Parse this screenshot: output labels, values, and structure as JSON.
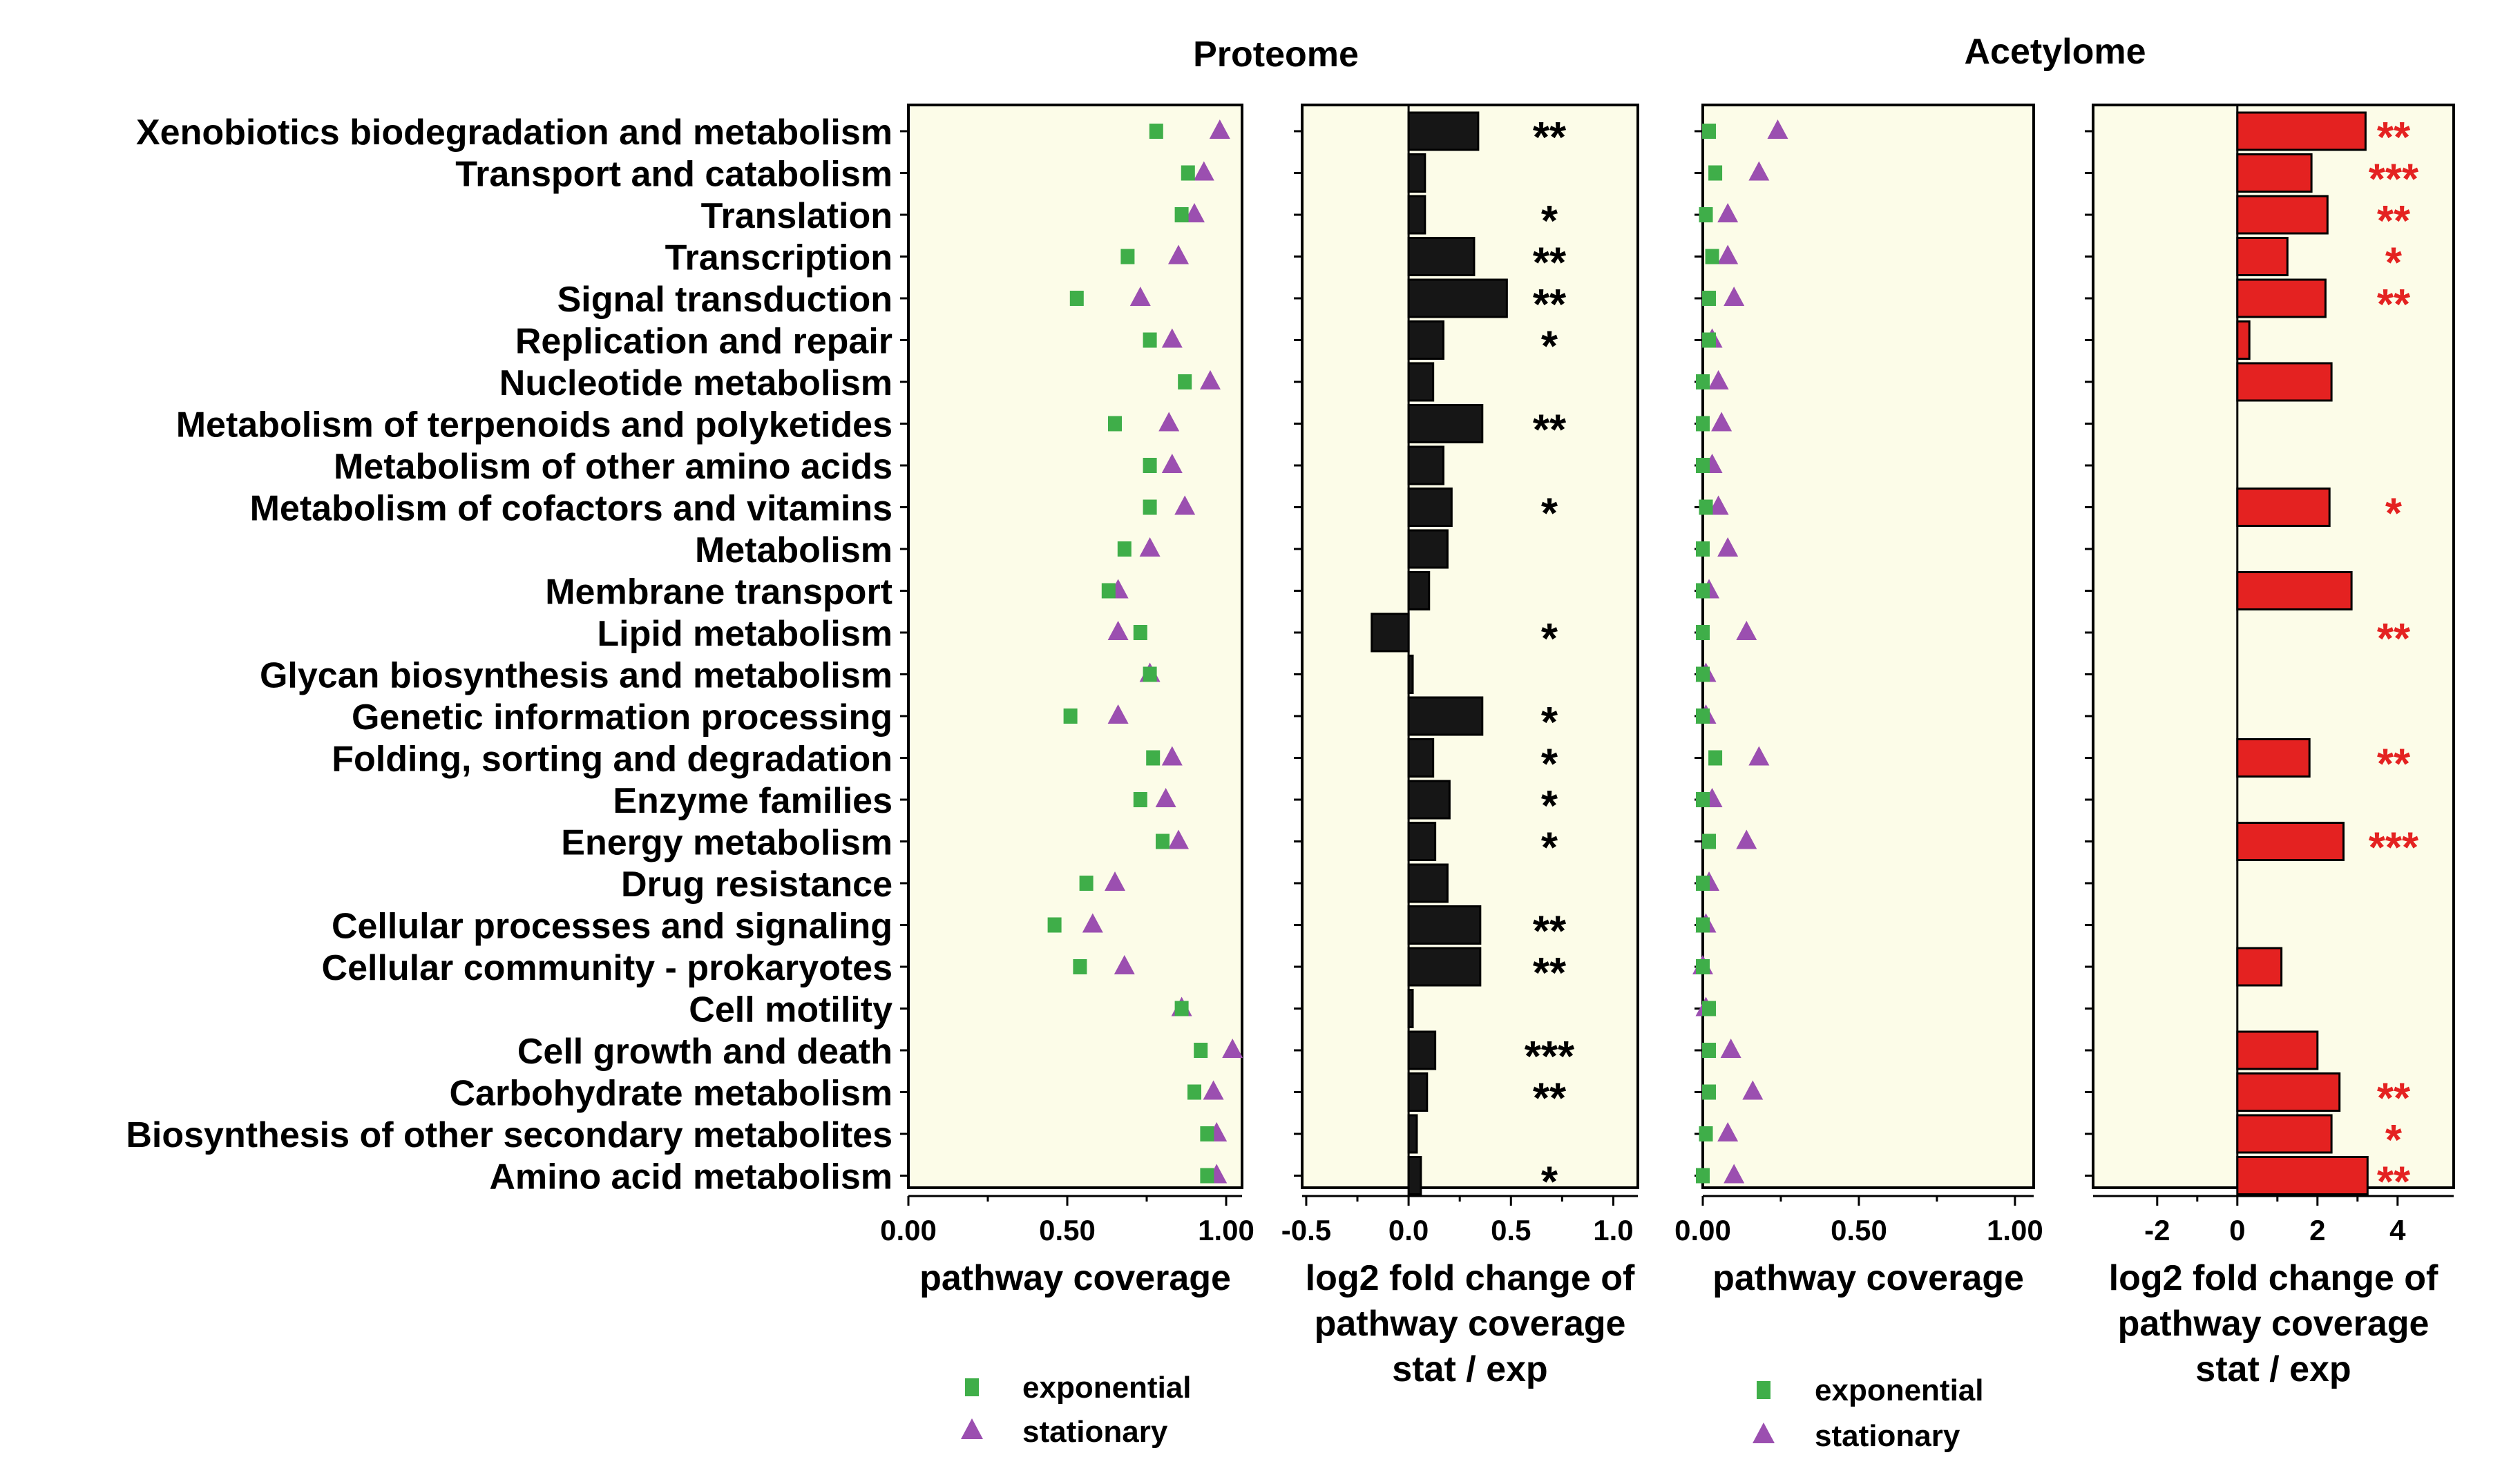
{
  "figure": {
    "section_titles": [
      "Proteome",
      "Acetylome"
    ],
    "pathways": [
      "Xenobiotics biodegradation and metabolism",
      "Transport and catabolism",
      "Translation",
      "Transcription",
      "Signal transduction",
      "Replication and repair",
      "Nucleotide metabolism",
      "Metabolism of terpenoids and polyketides",
      "Metabolism of other amino acids",
      "Metabolism of cofactors and vitamins",
      "Metabolism",
      "Membrane transport",
      "Lipid metabolism",
      "Glycan biosynthesis and metabolism",
      "Genetic information processing",
      "Folding, sorting and degradation",
      "Enzyme families",
      "Energy metabolism",
      "Drug resistance",
      "Cellular processes and signaling",
      "Cellular community - prokaryotes",
      "Cell motility",
      "Cell growth and death",
      "Carbohydrate metabolism",
      "Biosynthesis of other secondary metabolites",
      "Amino acid metabolism"
    ],
    "legend": [
      {
        "label": "exponential",
        "color": "#3fae49",
        "marker": "square"
      },
      {
        "label": "stationary",
        "color": "#9b4fb0",
        "marker": "triangle"
      }
    ],
    "colors": {
      "panel_bg": "#fcfce8",
      "exponential": "#3fae49",
      "stationary": "#9b4fb0",
      "proteome_bar": "#161616",
      "acetylome_bar": "#e42221",
      "acetylome_sig": "#e42221"
    }
  },
  "chart_data": [
    {
      "id": "proteome-coverage",
      "type": "scatter",
      "xlabel": "pathway coverage",
      "xlim": [
        0,
        1.05
      ],
      "xticks": [
        0,
        0.5,
        1
      ],
      "xtick_labels": [
        "0.00",
        "0.50",
        "1.00"
      ],
      "series": [
        {
          "name": "exponential",
          "values": [
            0.78,
            0.88,
            0.86,
            0.69,
            0.53,
            0.76,
            0.87,
            0.65,
            0.76,
            0.76,
            0.68,
            0.63,
            0.73,
            0.76,
            0.51,
            0.77,
            0.73,
            0.8,
            0.56,
            0.46,
            0.54,
            0.86,
            0.92,
            0.9,
            0.94,
            0.94
          ]
        },
        {
          "name": "stationary",
          "values": [
            0.98,
            0.93,
            0.9,
            0.85,
            0.73,
            0.83,
            0.95,
            0.82,
            0.83,
            0.87,
            0.76,
            0.66,
            0.66,
            0.76,
            0.66,
            0.83,
            0.81,
            0.85,
            0.65,
            0.58,
            0.68,
            0.86,
            1.02,
            0.96,
            0.97,
            0.97
          ]
        }
      ]
    },
    {
      "id": "proteome-fold-change",
      "type": "bar",
      "orientation": "horizontal",
      "xlabel": "log2 fold change of\npathway coverage\nstat / exp",
      "xlim": [
        -0.52,
        1.12
      ],
      "xticks": [
        -0.5,
        0,
        0.5,
        1
      ],
      "xtick_labels": [
        "-0.5",
        "0.0",
        "0.5",
        "1.0"
      ],
      "values": [
        0.34,
        0.08,
        0.08,
        0.32,
        0.48,
        0.17,
        0.12,
        0.36,
        0.17,
        0.21,
        0.19,
        0.1,
        -0.18,
        0.02,
        0.36,
        0.12,
        0.2,
        0.13,
        0.19,
        0.35,
        0.35,
        0.02,
        0.13,
        0.09,
        0.04,
        0.06
      ],
      "significance": [
        "**",
        "",
        "*",
        "**",
        "**",
        "*",
        "",
        "**",
        "",
        "*",
        "",
        "",
        "*",
        "",
        "*",
        "*",
        "*",
        "*",
        "",
        "**",
        "**",
        "",
        "***",
        "**",
        "",
        "*"
      ]
    },
    {
      "id": "acetylome-coverage",
      "type": "scatter",
      "xlabel": "pathway coverage",
      "xlim": [
        0,
        1.06
      ],
      "xticks": [
        0,
        0.5,
        1
      ],
      "xtick_labels": [
        "0.00",
        "0.50",
        "1.00"
      ],
      "series": [
        {
          "name": "exponential",
          "values": [
            0.02,
            0.04,
            0.01,
            0.03,
            0.02,
            0.02,
            0.0,
            0.0,
            0.0,
            0.01,
            0.0,
            0.0,
            0.0,
            0.0,
            0.0,
            0.04,
            0.0,
            0.02,
            0.0,
            0.0,
            0.0,
            0.02,
            0.02,
            0.02,
            0.01,
            0.0
          ]
        },
        {
          "name": "stationary",
          "values": [
            0.24,
            0.18,
            0.08,
            0.08,
            0.1,
            0.03,
            0.05,
            0.06,
            0.03,
            0.05,
            0.08,
            0.02,
            0.14,
            0.01,
            0.01,
            0.18,
            0.03,
            0.14,
            0.02,
            0.01,
            0.0,
            0.01,
            0.09,
            0.16,
            0.08,
            0.1
          ]
        }
      ]
    },
    {
      "id": "acetylome-fold-change",
      "type": "bar",
      "orientation": "horizontal",
      "xlabel": "log2 fold change of\npathway coverage\nstat / exp",
      "xlim": [
        -3.6,
        5.4
      ],
      "xticks": [
        -2,
        0,
        2,
        4
      ],
      "xtick_labels": [
        "-2",
        "0",
        "2",
        "4"
      ],
      "values": [
        3.2,
        1.85,
        2.25,
        1.25,
        2.2,
        0.3,
        2.35,
        0,
        0,
        2.3,
        0,
        2.85,
        0,
        0,
        0,
        1.8,
        0,
        2.65,
        0,
        0,
        1.1,
        0,
        2.0,
        2.55,
        2.35,
        3.25
      ],
      "significance": [
        "**",
        "***",
        "**",
        "*",
        "**",
        "",
        "",
        "",
        "",
        "*",
        "",
        "",
        "**",
        "",
        "",
        "**",
        "",
        "***",
        "",
        "",
        "",
        "",
        "",
        "**",
        "*",
        "**"
      ]
    }
  ]
}
